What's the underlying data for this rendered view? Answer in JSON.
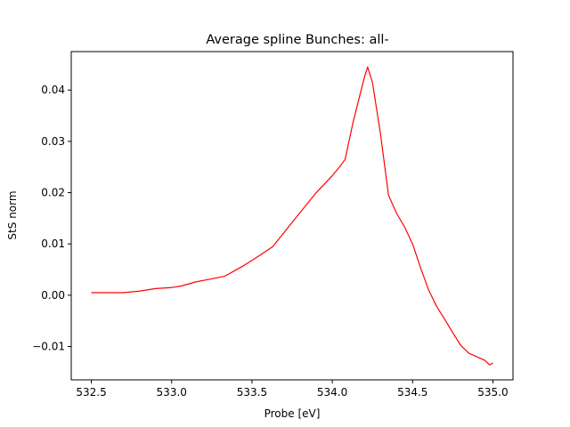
{
  "chart_data": {
    "type": "line",
    "title": "Average spline Bunches: all-",
    "xlabel": "Probe [eV]",
    "ylabel": "StS norm",
    "xlim": [
      532.375,
      535.125
    ],
    "ylim": [
      -0.0165,
      0.0475
    ],
    "xticks": [
      532.5,
      533.0,
      533.5,
      534.0,
      534.5,
      535.0
    ],
    "xtick_labels": [
      "532.5",
      "533.0",
      "533.5",
      "534.0",
      "534.5",
      "535.0"
    ],
    "yticks": [
      -0.01,
      0.0,
      0.01,
      0.02,
      0.03,
      0.04
    ],
    "ytick_labels": [
      "−0.01",
      "0.00",
      "0.01",
      "0.02",
      "0.03",
      "0.04"
    ],
    "grid": false,
    "legend": "none",
    "series": [
      {
        "color": "#ff0000",
        "x": [
          532.5,
          532.6,
          532.7,
          532.8,
          532.9,
          533.0,
          533.06,
          533.15,
          533.25,
          533.33,
          533.45,
          533.55,
          533.63,
          533.75,
          533.9,
          534.0,
          534.05,
          534.08,
          534.13,
          534.2,
          534.22,
          534.25,
          534.3,
          534.35,
          534.4,
          534.45,
          534.5,
          534.55,
          534.6,
          534.65,
          534.7,
          534.75,
          534.8,
          534.85,
          534.9,
          534.95,
          534.98,
          535.0
        ],
        "y": [
          0.0005,
          0.0005,
          0.0005,
          0.0008,
          0.0013,
          0.0015,
          0.0018,
          0.0026,
          0.0032,
          0.0037,
          0.0058,
          0.0078,
          0.0095,
          0.0142,
          0.02,
          0.0233,
          0.0252,
          0.0265,
          0.0338,
          0.0425,
          0.0445,
          0.0415,
          0.0315,
          0.0195,
          0.016,
          0.0133,
          0.01,
          0.0053,
          0.001,
          -0.0022,
          -0.0047,
          -0.0073,
          -0.0098,
          -0.0113,
          -0.012,
          -0.0127,
          -0.0136,
          -0.0132
        ]
      }
    ]
  }
}
